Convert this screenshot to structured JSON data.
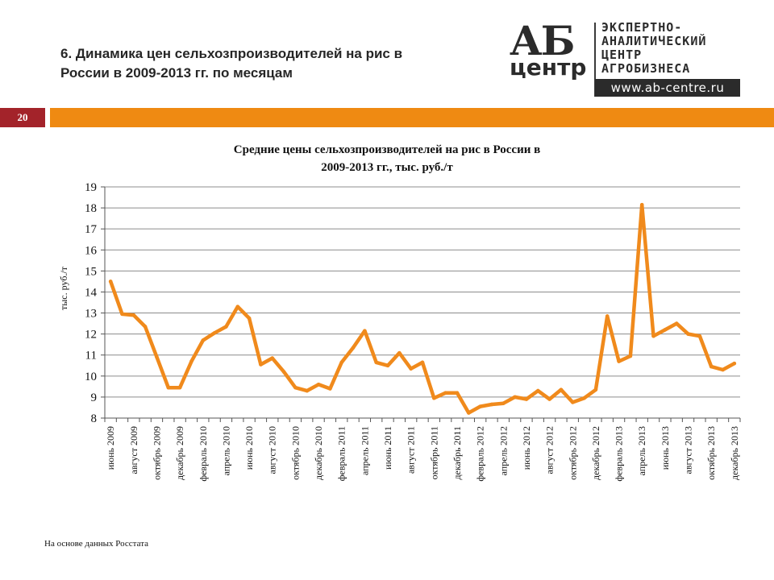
{
  "slide": {
    "title": "6. Динамика цен сельхозпроизводителей на рис в России в 2009-2013 гг. по месяцам",
    "page_number": "20",
    "footnote": "На основе данных Росстата"
  },
  "logo": {
    "mark_top": "АБ",
    "mark_bottom": "центр",
    "lines": [
      "ЭКСПЕРТНО-",
      "АНАЛИТИЧЕСКИЙ",
      "ЦЕНТР",
      "АГРОБИЗНЕСА"
    ],
    "url": "www.ab-centre.ru"
  },
  "colors": {
    "accent_orange": "#ef8a12",
    "badge_red": "#a3232a",
    "line": "#f08a1c"
  },
  "chart_data": {
    "type": "line",
    "title_line1": "Средние цены сельхозпроизводителей на рис в России в",
    "title_line2": "2009-2013 гг., тыс. руб./т",
    "xlabel": "",
    "ylabel": "тыс. руб./т",
    "ylim": [
      8,
      19
    ],
    "yticks": [
      8,
      9,
      10,
      11,
      12,
      13,
      14,
      15,
      16,
      17,
      18,
      19
    ],
    "grid": true,
    "x": [
      "июнь 2009",
      "июль 2009",
      "август 2009",
      "сентябрь 2009",
      "октябрь 2009",
      "ноябрь 2009",
      "декабрь 2009",
      "январь 2010",
      "февраль 2010",
      "март 2010",
      "апрель 2010",
      "май 2010",
      "июнь 2010",
      "июль 2010",
      "август 2010",
      "сентябрь 2010",
      "октябрь 2010",
      "ноябрь 2010",
      "декабрь 2010",
      "январь 2011",
      "февраль 2011",
      "март 2011",
      "апрель 2011",
      "май 2011",
      "июнь 2011",
      "июль 2011",
      "август 2011",
      "сентябрь 2011",
      "октябрь 2011",
      "ноябрь 2011",
      "декабрь 2011",
      "январь 2012",
      "февраль 2012",
      "март 2012",
      "апрель 2012",
      "май 2012",
      "июнь 2012",
      "июль 2012",
      "август 2012",
      "сентябрь 2012",
      "октябрь 2012",
      "ноябрь 2012",
      "декабрь 2012",
      "январь 2013",
      "февраль 2013",
      "март 2013",
      "апрель 2013",
      "май 2013",
      "июнь 2013",
      "июль 2013",
      "август 2013",
      "сентябрь 2013",
      "октябрь 2013",
      "ноябрь 2013",
      "декабрь 2013"
    ],
    "tick_labels": [
      "июнь 2009",
      "август 2009",
      "октябрь 2009",
      "декабрь 2009",
      "февраль 2010",
      "апрель 2010",
      "июнь 2010",
      "август 2010",
      "октябрь 2010",
      "декабрь 2010",
      "февраль 2011",
      "апрель 2011",
      "июнь 2011",
      "август 2011",
      "октябрь 2011",
      "декабрь 2011",
      "февраль 2012",
      "апрель 2012",
      "июнь 2012",
      "август 2012",
      "октябрь 2012",
      "декабрь 2012",
      "февраль 2013",
      "апрель 2013",
      "июнь 2013",
      "август 2013",
      "октябрь 2013",
      "декабрь 2013"
    ],
    "series": [
      {
        "name": "Средние цены на рис",
        "values": [
          14.5,
          12.95,
          12.9,
          12.35,
          10.9,
          9.45,
          9.45,
          10.7,
          11.7,
          12.05,
          12.35,
          13.3,
          12.75,
          10.55,
          10.85,
          10.2,
          9.45,
          9.3,
          9.6,
          9.4,
          10.65,
          11.35,
          12.15,
          10.65,
          10.5,
          11.1,
          10.35,
          10.65,
          8.95,
          9.2,
          9.2,
          8.25,
          8.55,
          8.65,
          8.7,
          9.0,
          8.9,
          9.3,
          8.9,
          9.35,
          8.75,
          8.95,
          9.35,
          12.85,
          10.7,
          10.95,
          18.15,
          11.9,
          12.2,
          12.5,
          12.0,
          11.9,
          10.45,
          10.3,
          10.6
        ]
      }
    ]
  }
}
